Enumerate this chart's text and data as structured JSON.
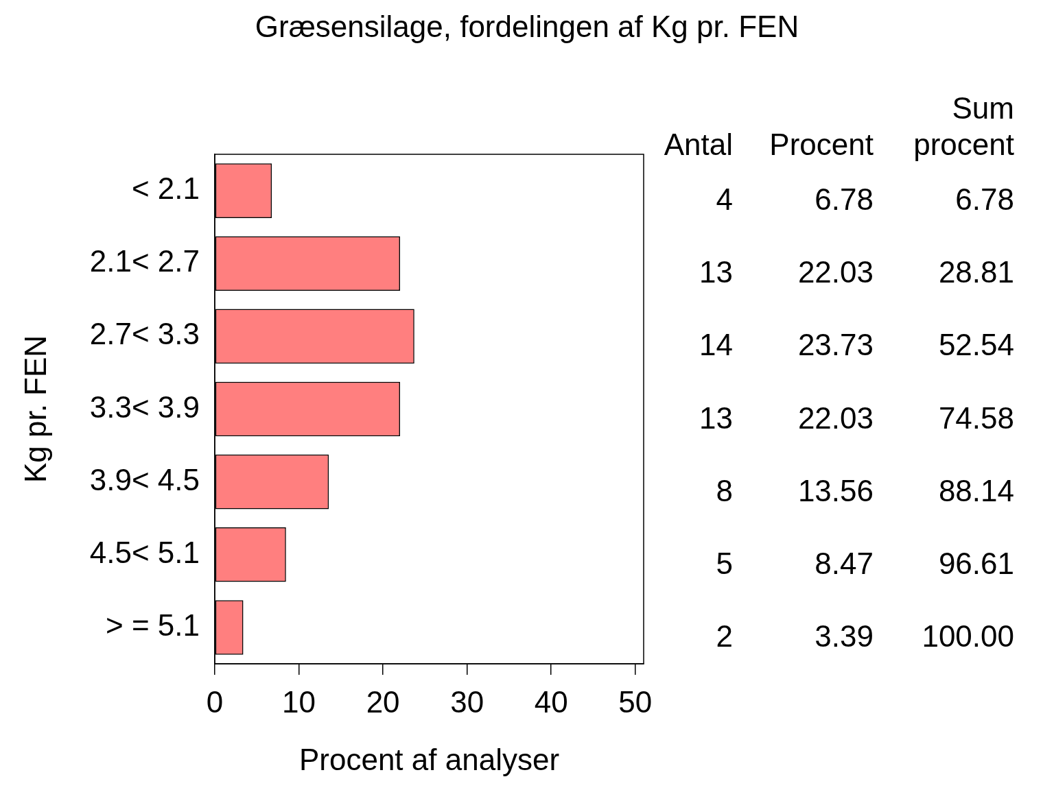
{
  "chart_data": {
    "type": "bar",
    "orientation": "horizontal",
    "title": "Græsensilage, fordelingen af Kg pr. FEN",
    "xlabel": "Procent af analyser",
    "ylabel": "Kg pr. FEN",
    "categories": [
      "< 2.1",
      "2.1< 2.7",
      "2.7< 3.3",
      "3.3< 3.9",
      "3.9< 4.5",
      "4.5< 5.1",
      "> = 5.1"
    ],
    "values": [
      6.78,
      22.03,
      23.73,
      22.03,
      13.56,
      8.47,
      3.39
    ],
    "color": "#ff0000",
    "xlim": [
      0,
      51
    ],
    "xticks": [
      0,
      10,
      20,
      30,
      40,
      50
    ],
    "grid": false,
    "legend": false,
    "data_labels": true,
    "annotations": [
      "Antal",
      "Procent",
      "Sum procent",
      "4",
      "6.78",
      "13",
      "28.81",
      "14",
      "52.54",
      "13",
      "74.58",
      "8",
      "88.14",
      "5",
      "96.61",
      "2",
      "100.00"
    ]
  }
}
